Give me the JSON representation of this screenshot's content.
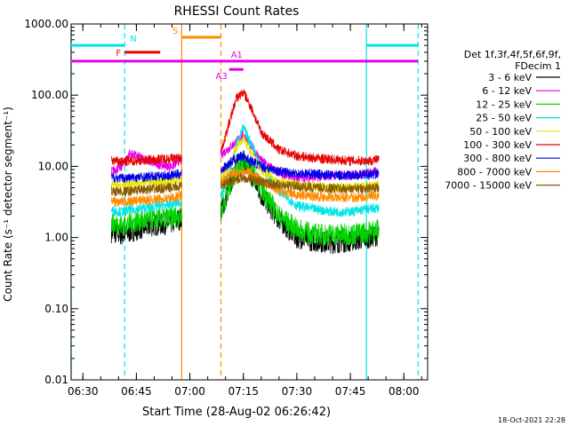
{
  "chart_data": {
    "type": "line",
    "title": "RHESSI Count Rates",
    "xlabel": "Start Time (28-Aug-02 06:26:42)",
    "ylabel": "Count Rate (s⁻¹ detector segment⁻¹)",
    "yscale": "log",
    "ylim": [
      0.01,
      1000
    ],
    "xlim": [
      "06:26:42",
      "08:06:40"
    ],
    "x_ticks": [
      "06:30",
      "06:45",
      "07:00",
      "07:15",
      "07:30",
      "07:45",
      "08:00"
    ],
    "y_ticks": [
      "0.01",
      "0.10",
      "1.00",
      "10.00",
      "100.00",
      "1000.00"
    ],
    "grid": false,
    "legend_position": "right",
    "legend_header": [
      "Det 1f,3f,4f,5f,6f,9f,",
      "FDecim 1"
    ],
    "timestamp": "18-Oct-2021 22:28",
    "flags": [
      {
        "label": "N",
        "color": "#00e5e5",
        "segments": [
          [
            "06:26:42",
            "06:41:42"
          ],
          [
            "07:49:30",
            "08:04:00"
          ]
        ],
        "level": 500
      },
      {
        "label": "S",
        "color": "#ff8c00",
        "segments": [
          [
            "06:57:42",
            "07:08:42"
          ]
        ],
        "level": 650
      },
      {
        "label": "F",
        "color": "#e60000",
        "segments": [
          [
            "06:41:42",
            "06:51:42"
          ]
        ],
        "level": 400
      },
      {
        "label": "A1",
        "color": "#e600e6",
        "segments": [
          [
            "06:26:42",
            "08:04:00"
          ]
        ],
        "level": 300
      },
      {
        "label": "A3",
        "color": "#e600e6",
        "segments": [
          [
            "07:11:00",
            "07:15:00"
          ]
        ],
        "level": 230
      }
    ],
    "vlines": [
      {
        "time": "06:26:42",
        "color": "#00e5e5",
        "style": "solid"
      },
      {
        "time": "06:41:42",
        "color": "#00e5e5",
        "style": "dashed"
      },
      {
        "time": "06:57:42",
        "color": "#ff8c00",
        "style": "solid"
      },
      {
        "time": "07:08:42",
        "color": "#ff8c00",
        "style": "dashed"
      },
      {
        "time": "07:49:30",
        "color": "#00e5e5",
        "style": "solid"
      },
      {
        "time": "08:04:00",
        "color": "#00e5e5",
        "style": "dashed"
      }
    ],
    "segments": [
      [
        "06:38:00",
        "06:57:42"
      ],
      [
        "07:08:42",
        "07:53:00"
      ]
    ],
    "series": [
      {
        "name": "3 - 6 keV",
        "color": "#000000",
        "times": [
          "06:38",
          "06:41",
          "06:45",
          "06:50",
          "06:55",
          "06:57",
          "07:09",
          "07:11",
          "07:13",
          "07:15",
          "07:17",
          "07:20",
          "07:25",
          "07:30",
          "07:35",
          "07:40",
          "07:45",
          "07:50",
          "07:53"
        ],
        "values": [
          1.2,
          1.1,
          1.3,
          1.5,
          1.6,
          1.8,
          2.5,
          5,
          10,
          12,
          8,
          4,
          1.8,
          1.0,
          0.9,
          0.85,
          0.9,
          1.0,
          1.1
        ]
      },
      {
        "name": "6 - 12 keV",
        "color": "#e600e6",
        "times": [
          "06:38",
          "06:41",
          "06:43",
          "06:45",
          "06:50",
          "06:55",
          "06:57",
          "07:09",
          "07:11",
          "07:13",
          "07:15",
          "07:17",
          "07:20",
          "07:25",
          "07:30",
          "07:35",
          "07:40",
          "07:45",
          "07:50",
          "07:53"
        ],
        "values": [
          8.5,
          10,
          15,
          14,
          11,
          10,
          12,
          15,
          18,
          22,
          28,
          20,
          12,
          8,
          7,
          7,
          7.5,
          7.5,
          8,
          8.5
        ]
      },
      {
        "name": "12 - 25 keV",
        "color": "#00d400",
        "times": [
          "06:38",
          "06:41",
          "06:45",
          "06:50",
          "06:55",
          "06:57",
          "07:09",
          "07:11",
          "07:13",
          "07:15",
          "07:17",
          "07:20",
          "07:25",
          "07:30",
          "07:35",
          "07:40",
          "07:45",
          "07:50",
          "07:53"
        ],
        "values": [
          1.6,
          1.5,
          1.7,
          1.8,
          1.9,
          2.0,
          2.5,
          5,
          9,
          12,
          9,
          5,
          2.0,
          1.3,
          1.1,
          1.1,
          1.1,
          1.2,
          1.3
        ]
      },
      {
        "name": "25 - 50 keV",
        "color": "#00e5e5",
        "times": [
          "06:38",
          "06:41",
          "06:45",
          "06:50",
          "06:55",
          "06:57",
          "07:09",
          "07:11",
          "07:13",
          "07:15",
          "07:17",
          "07:20",
          "07:25",
          "07:30",
          "07:35",
          "07:40",
          "07:45",
          "07:50",
          "07:53"
        ],
        "values": [
          2.4,
          2.3,
          2.5,
          2.7,
          2.9,
          3.1,
          4,
          8,
          20,
          35,
          22,
          10,
          4.5,
          2.8,
          2.5,
          2.3,
          2.3,
          2.5,
          2.6
        ]
      },
      {
        "name": "50 - 100 keV",
        "color": "#e6e600",
        "times": [
          "06:38",
          "06:41",
          "06:45",
          "06:50",
          "06:55",
          "06:57",
          "07:09",
          "07:11",
          "07:13",
          "07:15",
          "07:17",
          "07:20",
          "07:25",
          "07:30",
          "07:35",
          "07:40",
          "07:45",
          "07:50",
          "07:53"
        ],
        "values": [
          5.5,
          5.5,
          5.8,
          6.0,
          6.2,
          6.5,
          7,
          10,
          18,
          25,
          16,
          9,
          6,
          5.5,
          5.2,
          5.0,
          5.0,
          5.2,
          5.5
        ]
      },
      {
        "name": "100 - 300 keV",
        "color": "#e60000",
        "times": [
          "06:38",
          "06:41",
          "06:45",
          "06:50",
          "06:55",
          "06:57",
          "07:09",
          "07:11",
          "07:13",
          "07:15",
          "07:17",
          "07:20",
          "07:25",
          "07:30",
          "07:35",
          "07:40",
          "07:45",
          "07:50",
          "07:53"
        ],
        "values": [
          12,
          11.5,
          12,
          12.5,
          13,
          13,
          18,
          40,
          90,
          110,
          70,
          30,
          17,
          14,
          13,
          12.5,
          12,
          12,
          12.5
        ]
      },
      {
        "name": "300 - 800 keV",
        "color": "#0000e6",
        "times": [
          "06:38",
          "06:41",
          "06:45",
          "06:50",
          "06:55",
          "06:57",
          "07:09",
          "07:11",
          "07:13",
          "07:15",
          "07:17",
          "07:20",
          "07:25",
          "07:30",
          "07:35",
          "07:40",
          "07:45",
          "07:50",
          "07:53"
        ],
        "values": [
          7,
          6.8,
          7,
          7.2,
          7.5,
          7.8,
          9,
          11,
          13,
          14,
          12,
          10,
          8.5,
          8,
          7.8,
          7.5,
          7.5,
          7.6,
          7.8
        ]
      },
      {
        "name": "800 - 7000 keV",
        "color": "#ff8c00",
        "times": [
          "06:38",
          "06:41",
          "06:45",
          "06:50",
          "06:55",
          "06:57",
          "07:09",
          "07:11",
          "07:13",
          "07:15",
          "07:17",
          "07:20",
          "07:25",
          "07:30",
          "07:35",
          "07:40",
          "07:45",
          "07:50",
          "07:53"
        ],
        "values": [
          3.2,
          3.1,
          3.3,
          3.4,
          3.6,
          3.8,
          6,
          7.5,
          8,
          8.5,
          8,
          6.5,
          4.5,
          4.0,
          3.8,
          3.7,
          3.6,
          3.7,
          3.8
        ]
      },
      {
        "name": "7000 - 15000 keV",
        "color": "#8b5a00",
        "times": [
          "06:38",
          "06:41",
          "06:45",
          "06:50",
          "06:55",
          "06:57",
          "07:09",
          "07:11",
          "07:13",
          "07:15",
          "07:17",
          "07:20",
          "07:25",
          "07:30",
          "07:35",
          "07:40",
          "07:45",
          "07:50",
          "07:53"
        ],
        "values": [
          4.5,
          4.4,
          4.6,
          4.8,
          5.0,
          5.2,
          5.5,
          6,
          6.5,
          7,
          6.5,
          6,
          5.5,
          5.2,
          5.0,
          4.9,
          4.8,
          4.9,
          5.0
        ]
      }
    ]
  }
}
